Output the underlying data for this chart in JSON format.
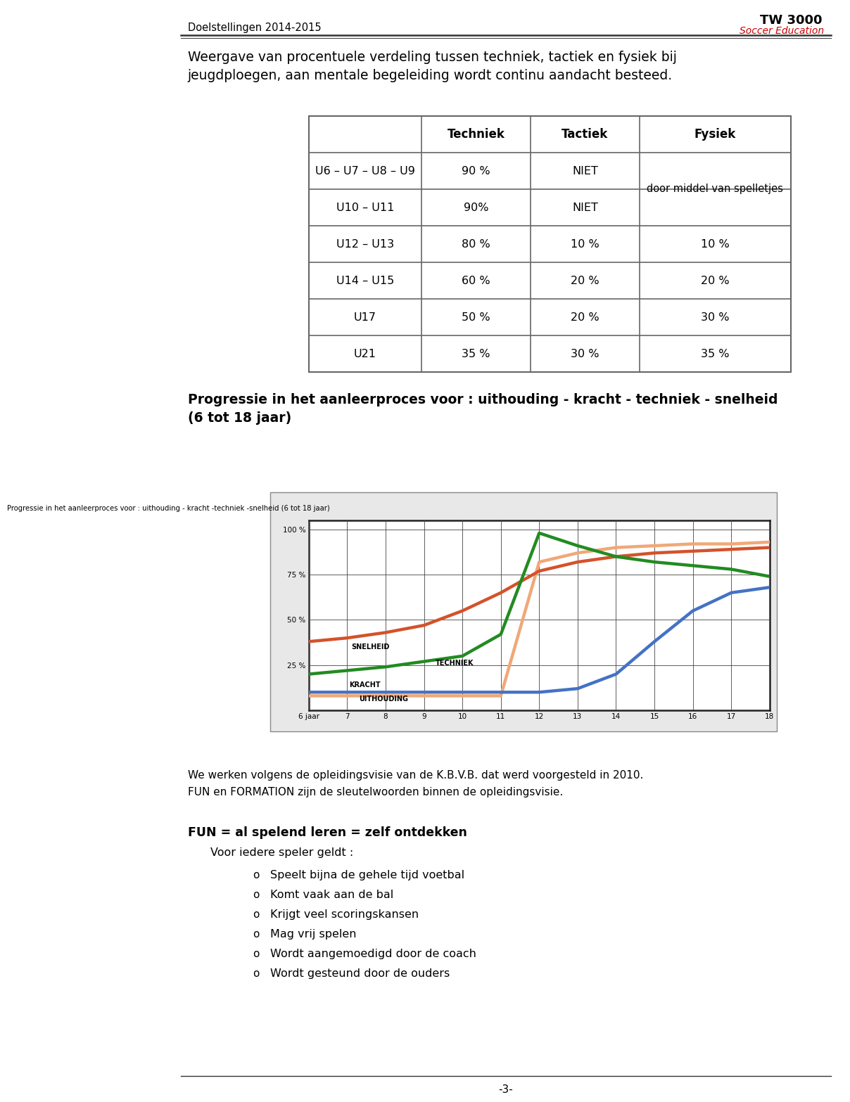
{
  "page_title": "Doelstellingen 2014-2015",
  "logo_text1": "TW 3000",
  "logo_text2": "Soccer Education",
  "intro_text": "Weergave van procentuele verdeling tussen techniek, tactiek en fysiek bij\njeugdploegen, aan mentale begeleiding wordt continu aandacht besteed.",
  "table_headers": [
    "",
    "Techniek",
    "Tactiek",
    "Fysiek"
  ],
  "table_rows": [
    [
      "U6 – U7 – U8 – U9",
      "90 %",
      "NIET",
      ""
    ],
    [
      "U10 – U11",
      "90%",
      "NIET",
      ""
    ],
    [
      "U12 – U13",
      "80 %",
      "10 %",
      "10 %"
    ],
    [
      "U14 – U15",
      "60 %",
      "20 %",
      "20 %"
    ],
    [
      "U17",
      "50 %",
      "20 %",
      "30 %"
    ],
    [
      "U21",
      "35 %",
      "30 %",
      "35 %"
    ]
  ],
  "fysiek_merged_text": "door middel van spelletjes",
  "section_title_line1": "Progressie in het aanleerproces voor : uithouding - kracht - techniek - snelheid",
  "section_title_line2": "(6 tot 18 jaar)",
  "chart_title": "Progressie in het aanleerproces voor : uithouding - kracht -techniek -snelheid (6 tot 18 jaar)",
  "chart_yticks": [
    0,
    25,
    50,
    75,
    100
  ],
  "chart_ytick_labels": [
    "",
    "25 %",
    "50 %",
    "75 %",
    "100 %"
  ],
  "chart_xticks": [
    6,
    7,
    8,
    9,
    10,
    11,
    12,
    13,
    14,
    15,
    16,
    17,
    18
  ],
  "chart_xtick_labels": [
    "6 jaar",
    "7",
    "8",
    "9",
    "10",
    "11",
    "12",
    "13",
    "14",
    "15",
    "16",
    "17",
    "18"
  ],
  "lines": {
    "snelheid": {
      "color": "#d4522a",
      "label": "SNELHEID",
      "x": [
        6,
        7,
        8,
        9,
        10,
        11,
        12,
        13,
        14,
        15,
        16,
        17,
        18
      ],
      "y": [
        38,
        40,
        43,
        47,
        55,
        65,
        77,
        82,
        85,
        87,
        88,
        89,
        90
      ]
    },
    "techniek": {
      "color": "#228B22",
      "label": "TECHNIEK",
      "x": [
        6,
        7,
        8,
        9,
        10,
        11,
        12,
        13,
        14,
        15,
        16,
        17,
        18
      ],
      "y": [
        20,
        22,
        24,
        27,
        30,
        42,
        98,
        91,
        85,
        82,
        80,
        78,
        74
      ]
    },
    "kracht": {
      "color": "#f0a878",
      "label": "KRACHT",
      "x": [
        6,
        7,
        8,
        9,
        10,
        11,
        12,
        13,
        14,
        15,
        16,
        17,
        18
      ],
      "y": [
        8,
        8,
        8,
        8,
        8,
        8,
        82,
        87,
        90,
        91,
        92,
        92,
        93
      ]
    },
    "uithouding": {
      "color": "#4472C4",
      "label": "UITHOUDING",
      "x": [
        6,
        7,
        8,
        9,
        10,
        11,
        12,
        13,
        14,
        15,
        16,
        17,
        18
      ],
      "y": [
        10,
        10,
        10,
        10,
        10,
        10,
        10,
        12,
        20,
        38,
        55,
        65,
        68
      ]
    }
  },
  "bottom_text1": "We werken volgens de opleidingsvisie van de K.B.V.B. dat werd voorgesteld in 2010.",
  "bottom_text2": "FUN en FORMATION zijn de sleutelwoorden binnen de opleidingsvisie.",
  "fun_title": "FUN = al spelend leren = zelf ontdekken",
  "fun_subtitle": "Voor iedere speler geldt :",
  "fun_bullets": [
    "Speelt bijna de gehele tijd voetbal",
    "Komt vaak aan de bal",
    "Krijgt veel scoringskansen",
    "Mag vrij spelen",
    "Wordt aangemoedigd door de coach",
    "Wordt gesteund door de ouders"
  ],
  "page_number": "-3-",
  "bg_color": "#ffffff",
  "text_color": "#000000",
  "table_border_color": "#666666",
  "chart_bg": "#e8e8e8",
  "chart_inner_bg": "#ffffff"
}
